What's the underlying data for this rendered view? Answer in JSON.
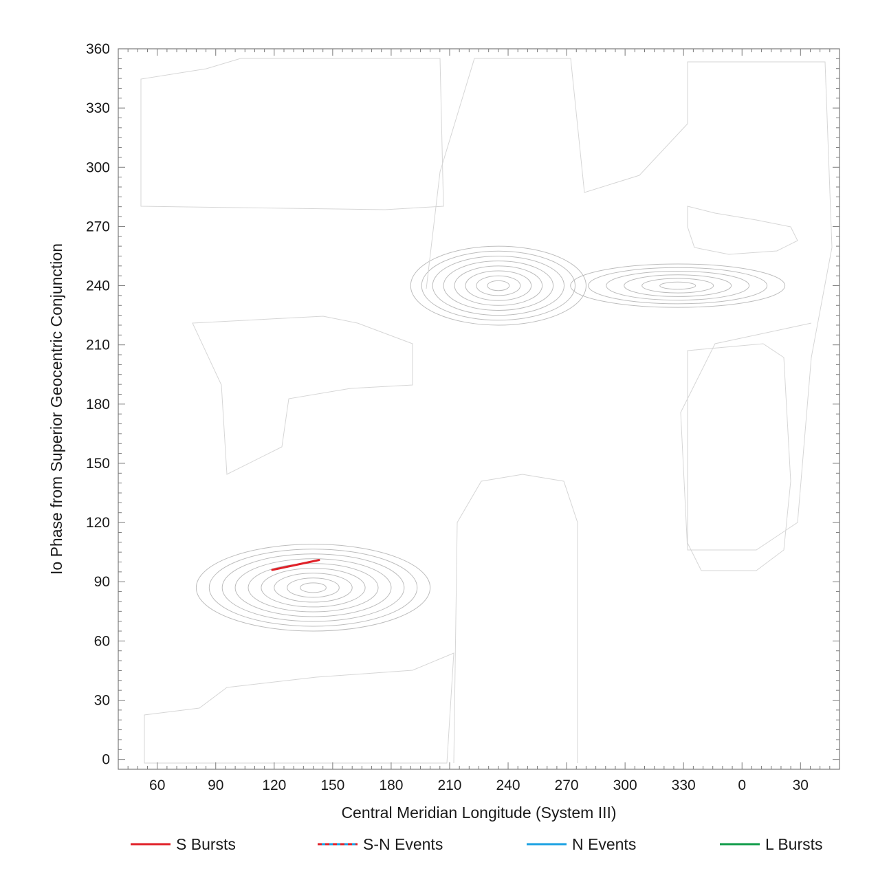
{
  "chart_data": {
    "type": "line",
    "xlabel": "Central Meridian Longitude (System III)",
    "ylabel": "Io Phase from Superior Geocentric Conjunction",
    "x_ticks": [
      "60",
      "90",
      "120",
      "150",
      "180",
      "210",
      "240",
      "270",
      "300",
      "330",
      "0",
      "30"
    ],
    "x_tick_values": [
      60,
      90,
      120,
      150,
      180,
      210,
      240,
      270,
      300,
      330,
      360,
      390
    ],
    "xlim": [
      40,
      410
    ],
    "y_ticks": [
      "0",
      "30",
      "60",
      "90",
      "120",
      "150",
      "180",
      "210",
      "240",
      "270",
      "300",
      "330",
      "360"
    ],
    "y_tick_values": [
      0,
      30,
      60,
      90,
      120,
      150,
      180,
      210,
      240,
      270,
      300,
      330,
      360
    ],
    "ylim": [
      -5,
      360
    ],
    "grid": false,
    "legend_position": "bottom",
    "contour_peaks": [
      {
        "x": 140,
        "y": 87,
        "rx": 60,
        "ry": 22,
        "levels": 9
      },
      {
        "x": 235,
        "y": 240,
        "rx": 45,
        "ry": 20,
        "levels": 8
      },
      {
        "x": 327,
        "y": 240,
        "rx": 55,
        "ry": 11,
        "levels": 6
      }
    ],
    "series": [
      {
        "name": "S Bursts",
        "color": "#e02027",
        "style": "solid",
        "x": [
          119,
          143
        ],
        "y": [
          96,
          101
        ]
      },
      {
        "name": "S-N Events",
        "color": "#e02027",
        "color2": "#1ba1e2",
        "style": "dashed",
        "x": [],
        "y": []
      },
      {
        "name": "N Events",
        "color": "#1ba1e2",
        "style": "solid",
        "x": [],
        "y": []
      },
      {
        "name": "L Bursts",
        "color": "#0f9b48",
        "style": "solid",
        "x": [],
        "y": []
      }
    ]
  }
}
